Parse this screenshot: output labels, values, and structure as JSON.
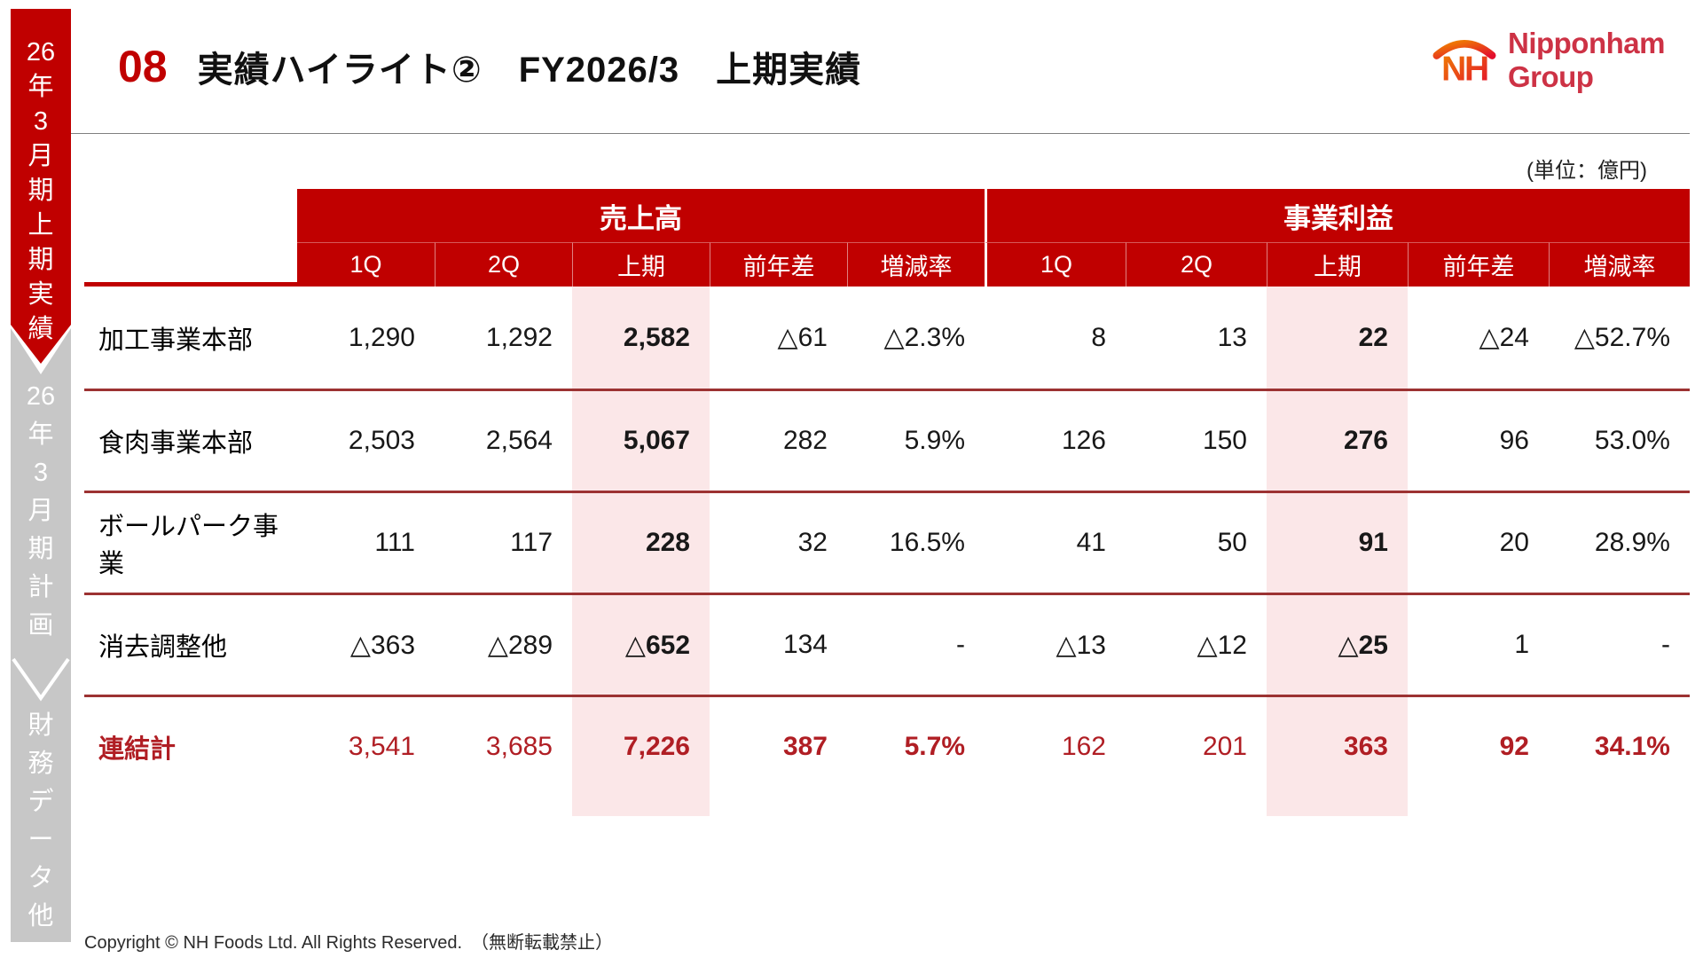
{
  "colors": {
    "primary_red": "#c00000",
    "total_row_red": "#b01e24",
    "pink_highlight": "#fbe7e8",
    "sidebar_gray": "#c7c7c7",
    "row_divider": "#9c3232",
    "logo_text_red": "#cd3245",
    "logo_gradient_start": "#f08300",
    "logo_gradient_end": "#e30f2d"
  },
  "sidebar": {
    "active_tab": {
      "label": "26年3月期上期実績",
      "lines": [
        "26",
        "年",
        "3",
        "月",
        "期",
        "上",
        "期",
        "実",
        "績"
      ]
    },
    "plan_tab": {
      "label": "26年3月期計画",
      "lines": [
        "26",
        "年",
        "3",
        "月",
        "期",
        "計",
        "画"
      ]
    },
    "other_tab": {
      "label": "財務データ他",
      "lines": [
        "財",
        "務",
        "デ",
        "ー",
        "タ",
        "他"
      ]
    }
  },
  "header": {
    "page_number": "08",
    "title": "実績ハイライト②　FY2026/3　上期実績",
    "unit_note": "(単位：億円)"
  },
  "logo": {
    "mark": "NH",
    "text": "Nipponham Group"
  },
  "table": {
    "group_headers": [
      "売上高",
      "事業利益"
    ],
    "sub_headers": [
      "1Q",
      "2Q",
      "上期",
      "前年差",
      "増減率"
    ],
    "rows": [
      {
        "label": "加工事業本部",
        "sales": {
          "q1": "1,290",
          "q2": "1,292",
          "h1": "2,582",
          "yoy": "△61",
          "pct": "△2.3%"
        },
        "profit": {
          "q1": "8",
          "q2": "13",
          "h1": "22",
          "yoy": "△24",
          "pct": "△52.7%"
        }
      },
      {
        "label": "食肉事業本部",
        "sales": {
          "q1": "2,503",
          "q2": "2,564",
          "h1": "5,067",
          "yoy": "282",
          "pct": "5.9%"
        },
        "profit": {
          "q1": "126",
          "q2": "150",
          "h1": "276",
          "yoy": "96",
          "pct": "53.0%"
        }
      },
      {
        "label": "ボールパーク事業",
        "sales": {
          "q1": "111",
          "q2": "117",
          "h1": "228",
          "yoy": "32",
          "pct": "16.5%"
        },
        "profit": {
          "q1": "41",
          "q2": "50",
          "h1": "91",
          "yoy": "20",
          "pct": "28.9%"
        }
      },
      {
        "label": "消去調整他",
        "sales": {
          "q1": "△363",
          "q2": "△289",
          "h1": "△652",
          "yoy": "134",
          "pct": "-"
        },
        "profit": {
          "q1": "△13",
          "q2": "△12",
          "h1": "△25",
          "yoy": "1",
          "pct": "-"
        }
      },
      {
        "label": "連結計",
        "sales": {
          "q1": "3,541",
          "q2": "3,685",
          "h1": "7,226",
          "yoy": "387",
          "pct": "5.7%"
        },
        "profit": {
          "q1": "162",
          "q2": "201",
          "h1": "363",
          "yoy": "92",
          "pct": "34.1%"
        }
      }
    ]
  },
  "footer": {
    "copyright": "Copyright © NH Foods Ltd. All Rights Reserved.　（無断転載禁止）"
  }
}
